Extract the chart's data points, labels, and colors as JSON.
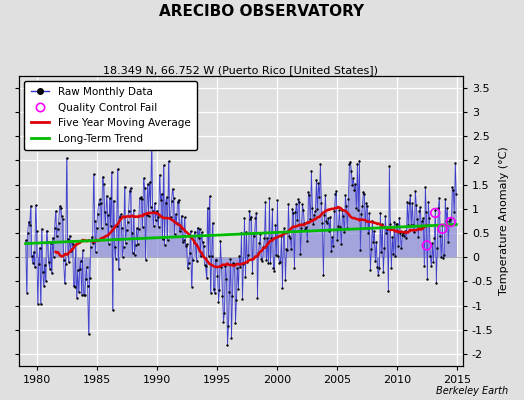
{
  "title": "ARECIBO OBSERVATORY",
  "subtitle": "18.349 N, 66.752 W (Puerto Rico [United States])",
  "ylabel": "Temperature Anomaly (°C)",
  "credit": "Berkeley Earth",
  "xlim": [
    1978.5,
    2015.5
  ],
  "ylim": [
    -2.25,
    3.75
  ],
  "yticks": [
    -2,
    -1.5,
    -1,
    -0.5,
    0,
    0.5,
    1,
    1.5,
    2,
    2.5,
    3,
    3.5
  ],
  "xticks": [
    1980,
    1985,
    1990,
    1995,
    2000,
    2005,
    2010,
    2015
  ],
  "bg_color": "#e0e0e0",
  "line_color": "#3333cc",
  "fill_color": "#8888dd",
  "ma_color": "#dd0000",
  "trend_color": "#00bb00",
  "qc_color": "#ff00ff",
  "title_fontsize": 11,
  "subtitle_fontsize": 8,
  "seed": 17
}
